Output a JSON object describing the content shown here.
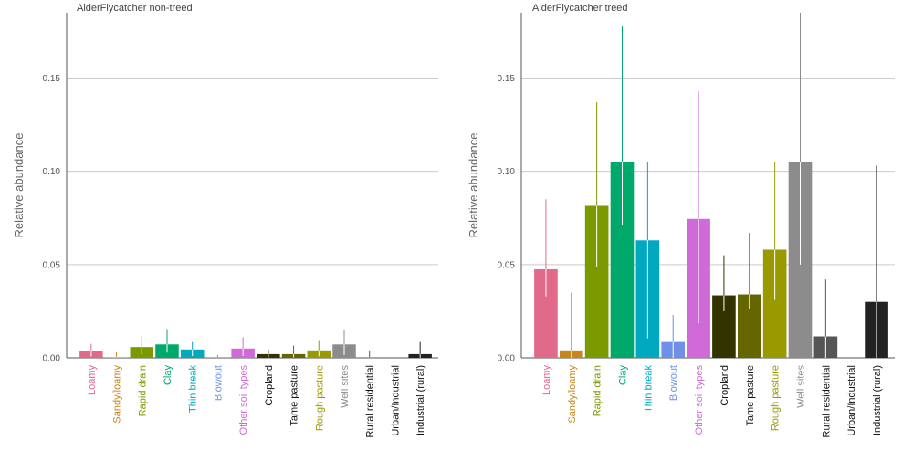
{
  "chart_data": [
    {
      "type": "bar",
      "title": "AlderFlycatcher non-treed",
      "xlabel": "",
      "ylabel": "Relative abundance",
      "ylim": [
        0,
        0.185
      ],
      "yticks": [
        "0.00",
        "0.05",
        "0.10",
        "0.15"
      ],
      "grid": "horizontal",
      "error_bars": true,
      "categories": [
        "Loamy",
        "Sandy/loamy",
        "Rapid drain",
        "Clay",
        "Thin break",
        "Blowout",
        "Other soil types",
        "Cropland",
        "Tame pasture",
        "Rough pasture",
        "Well sites",
        "Rural residential",
        "Urban/Industrial",
        "Industrial (rural)"
      ],
      "values": [
        0.0035,
        0.0003,
        0.0058,
        0.0072,
        0.0045,
        0.0001,
        0.005,
        0.002,
        0.002,
        0.004,
        0.0072,
        0.0002,
        0.0,
        0.002
      ],
      "lower": [
        0.0008,
        0.0,
        0.0018,
        0.0028,
        0.001,
        0.0,
        0.001,
        0.0003,
        0.0003,
        0.0008,
        0.0015,
        0.0,
        0.0,
        0.0001
      ],
      "upper": [
        0.0075,
        0.003,
        0.012,
        0.0155,
        0.0085,
        0.0015,
        0.011,
        0.0045,
        0.0065,
        0.0095,
        0.015,
        0.004,
        0.0,
        0.0085
      ]
    },
    {
      "type": "bar",
      "title": "AlderFlycatcher treed",
      "xlabel": "",
      "ylabel": "Relative abundance",
      "ylim": [
        0,
        0.185
      ],
      "yticks": [
        "0.00",
        "0.05",
        "0.10",
        "0.15"
      ],
      "grid": "horizontal",
      "error_bars": true,
      "categories": [
        "Loamy",
        "Sandy/loamy",
        "Rapid drain",
        "Clay",
        "Thin break",
        "Blowout",
        "Other soil types",
        "Cropland",
        "Tame pasture",
        "Rough pasture",
        "Well sites",
        "Rural residential",
        "Urban/Industrial",
        "Industrial (rural)"
      ],
      "values": [
        0.0475,
        0.004,
        0.0815,
        0.105,
        0.063,
        0.0085,
        0.0745,
        0.0335,
        0.034,
        0.058,
        0.105,
        0.0115,
        0.0,
        0.03
      ],
      "lower": [
        0.033,
        0.0,
        0.0485,
        0.071,
        0.0105,
        0.0,
        0.0185,
        0.025,
        0.026,
        0.031,
        0.05,
        0.0,
        0.0,
        0.0
      ],
      "upper": [
        0.085,
        0.035,
        0.137,
        0.178,
        0.105,
        0.023,
        0.143,
        0.055,
        0.067,
        0.105,
        0.185,
        0.042,
        0.0,
        0.103
      ]
    }
  ],
  "colors": {
    "Loamy": "#E16A8A",
    "Sandy/loamy": "#C8861A",
    "Rapid drain": "#7A9A00",
    "Clay": "#00A86B",
    "Thin break": "#00A8C0",
    "Blowout": "#6F8FE8",
    "Other soil types": "#D06AD8",
    "Cropland": "#333300",
    "Tame pasture": "#666600",
    "Rough pasture": "#999900",
    "Well sites": "#8C8C8C",
    "Rural residential": "#555555",
    "Urban/Industrial": "#444444",
    "Industrial (rural)": "#222222"
  },
  "label_colors": {
    "Loamy": "#E16A8A",
    "Sandy/loamy": "#C8861A",
    "Rapid drain": "#7A9A00",
    "Clay": "#00A86B",
    "Thin break": "#00A8C0",
    "Blowout": "#6F8FE8",
    "Other soil types": "#D06AD8",
    "Cropland": "#111111",
    "Tame pasture": "#111111",
    "Rough pasture": "#999900",
    "Well sites": "#8C8C8C",
    "Rural residential": "#111111",
    "Urban/Industrial": "#111111",
    "Industrial (rural)": "#111111"
  }
}
